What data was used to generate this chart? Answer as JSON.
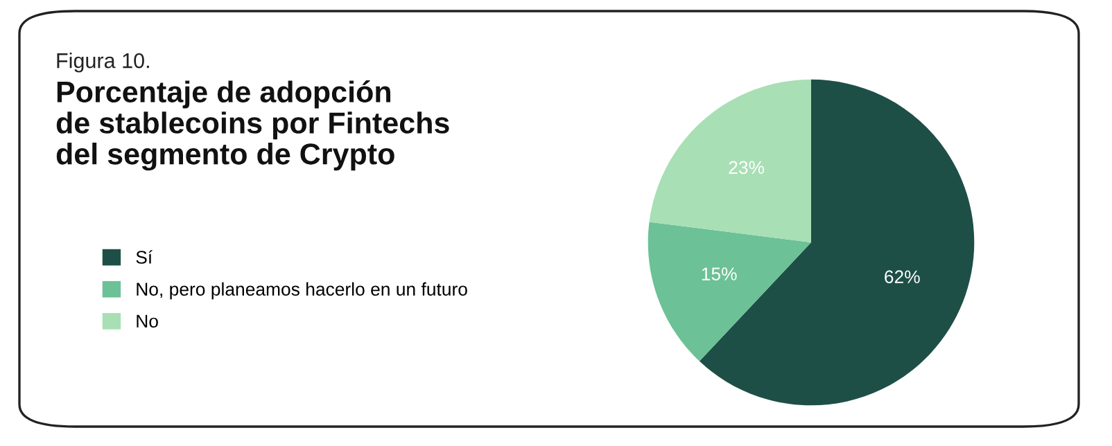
{
  "chart_data": {
    "type": "pie",
    "title": "Porcentaje de adopción\nde stablecoins por Fintechs\ndel segmento de Crypto",
    "annotations": [
      "Figura 10."
    ],
    "categories": [
      "Sí",
      "No, pero planeamos hacerlo en un futuro",
      "No"
    ],
    "values": [
      62,
      15,
      23
    ],
    "colors": [
      "#1d4f47",
      "#6cc196",
      "#a8dfb5"
    ],
    "value_labels": [
      "62%",
      "15%",
      "23%"
    ],
    "legend": "left"
  }
}
